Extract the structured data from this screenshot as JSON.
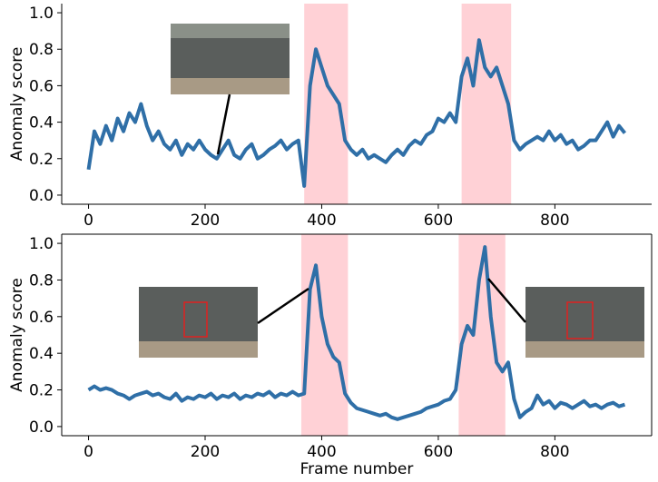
{
  "chart_data": [
    {
      "type": "line",
      "ylabel": "Anomaly score",
      "xlim": [
        -46,
        966
      ],
      "ylim": [
        -0.05,
        1.05
      ],
      "xticks": [
        0,
        200,
        400,
        600,
        800
      ],
      "yticks": [
        {
          "value": 0,
          "label": "0.0"
        },
        {
          "value": 0.2,
          "label": "0.2"
        },
        {
          "value": 0.4,
          "label": "0.4"
        },
        {
          "value": 0.6,
          "label": "0.6"
        },
        {
          "value": 0.8,
          "label": "0.8"
        },
        {
          "value": 1,
          "label": "1.0"
        }
      ],
      "highlights": [
        [
          370,
          445
        ],
        [
          640,
          725
        ]
      ],
      "highlight_color": "#ffd1d6",
      "x": [
        0,
        10,
        20,
        30,
        40,
        50,
        60,
        70,
        80,
        90,
        100,
        110,
        120,
        130,
        140,
        150,
        160,
        170,
        180,
        190,
        200,
        210,
        220,
        230,
        240,
        250,
        260,
        270,
        280,
        290,
        300,
        310,
        320,
        330,
        340,
        350,
        360,
        370,
        380,
        390,
        400,
        410,
        420,
        430,
        440,
        450,
        460,
        470,
        480,
        490,
        500,
        510,
        520,
        530,
        540,
        550,
        560,
        570,
        580,
        590,
        600,
        610,
        620,
        630,
        640,
        650,
        660,
        670,
        680,
        690,
        700,
        710,
        720,
        730,
        740,
        750,
        760,
        770,
        780,
        790,
        800,
        810,
        820,
        830,
        840,
        850,
        860,
        870,
        880,
        890,
        900,
        910,
        920
      ],
      "series": [
        {
          "color": "#2f6fa7",
          "values": [
            0.14,
            0.35,
            0.28,
            0.38,
            0.3,
            0.42,
            0.35,
            0.45,
            0.4,
            0.5,
            0.38,
            0.3,
            0.35,
            0.28,
            0.25,
            0.3,
            0.22,
            0.28,
            0.25,
            0.3,
            0.25,
            0.22,
            0.2,
            0.25,
            0.3,
            0.22,
            0.2,
            0.25,
            0.28,
            0.2,
            0.22,
            0.25,
            0.27,
            0.3,
            0.25,
            0.28,
            0.3,
            0.05,
            0.6,
            0.8,
            0.7,
            0.6,
            0.55,
            0.5,
            0.3,
            0.25,
            0.22,
            0.25,
            0.2,
            0.22,
            0.2,
            0.18,
            0.22,
            0.25,
            0.22,
            0.27,
            0.3,
            0.28,
            0.33,
            0.35,
            0.42,
            0.4,
            0.45,
            0.4,
            0.65,
            0.75,
            0.6,
            0.85,
            0.7,
            0.65,
            0.7,
            0.6,
            0.5,
            0.3,
            0.25,
            0.28,
            0.3,
            0.32,
            0.3,
            0.35,
            0.3,
            0.33,
            0.28,
            0.3,
            0.25,
            0.27,
            0.3,
            0.3,
            0.35,
            0.4,
            0.32,
            0.38,
            0.34
          ]
        }
      ]
    },
    {
      "type": "line",
      "ylabel": "Anomaly score",
      "xlabel": "Frame number",
      "xlim": [
        -46,
        966
      ],
      "ylim": [
        -0.05,
        1.05
      ],
      "xticks": [
        0,
        200,
        400,
        600,
        800
      ],
      "yticks": [
        {
          "value": 0,
          "label": "0.0"
        },
        {
          "value": 0.2,
          "label": "0.2"
        },
        {
          "value": 0.4,
          "label": "0.4"
        },
        {
          "value": 0.6,
          "label": "0.6"
        },
        {
          "value": 0.8,
          "label": "0.8"
        },
        {
          "value": 1,
          "label": "1.0"
        }
      ],
      "highlights": [
        [
          365,
          445
        ],
        [
          635,
          715
        ]
      ],
      "highlight_color": "#ffd1d6",
      "x": [
        0,
        10,
        20,
        30,
        40,
        50,
        60,
        70,
        80,
        90,
        100,
        110,
        120,
        130,
        140,
        150,
        160,
        170,
        180,
        190,
        200,
        210,
        220,
        230,
        240,
        250,
        260,
        270,
        280,
        290,
        300,
        310,
        320,
        330,
        340,
        350,
        360,
        370,
        380,
        390,
        400,
        410,
        420,
        430,
        440,
        450,
        460,
        470,
        480,
        490,
        500,
        510,
        520,
        530,
        540,
        550,
        560,
        570,
        580,
        590,
        600,
        610,
        620,
        630,
        640,
        650,
        660,
        670,
        680,
        690,
        700,
        710,
        720,
        730,
        740,
        750,
        760,
        770,
        780,
        790,
        800,
        810,
        820,
        830,
        840,
        850,
        860,
        870,
        880,
        890,
        900,
        910,
        920
      ],
      "series": [
        {
          "color": "#2f6fa7",
          "values": [
            0.2,
            0.22,
            0.2,
            0.21,
            0.2,
            0.18,
            0.17,
            0.15,
            0.17,
            0.18,
            0.19,
            0.17,
            0.18,
            0.16,
            0.15,
            0.18,
            0.14,
            0.16,
            0.15,
            0.17,
            0.16,
            0.18,
            0.15,
            0.17,
            0.16,
            0.18,
            0.15,
            0.17,
            0.16,
            0.18,
            0.17,
            0.19,
            0.16,
            0.18,
            0.17,
            0.19,
            0.17,
            0.18,
            0.75,
            0.88,
            0.6,
            0.45,
            0.38,
            0.35,
            0.18,
            0.13,
            0.1,
            0.09,
            0.08,
            0.07,
            0.06,
            0.07,
            0.05,
            0.04,
            0.05,
            0.06,
            0.07,
            0.08,
            0.1,
            0.11,
            0.12,
            0.14,
            0.15,
            0.2,
            0.45,
            0.55,
            0.5,
            0.8,
            0.98,
            0.6,
            0.35,
            0.3,
            0.35,
            0.15,
            0.05,
            0.08,
            0.1,
            0.17,
            0.12,
            0.14,
            0.1,
            0.13,
            0.12,
            0.1,
            0.12,
            0.14,
            0.11,
            0.12,
            0.1,
            0.12,
            0.13,
            0.11,
            0.12
          ]
        }
      ]
    }
  ]
}
